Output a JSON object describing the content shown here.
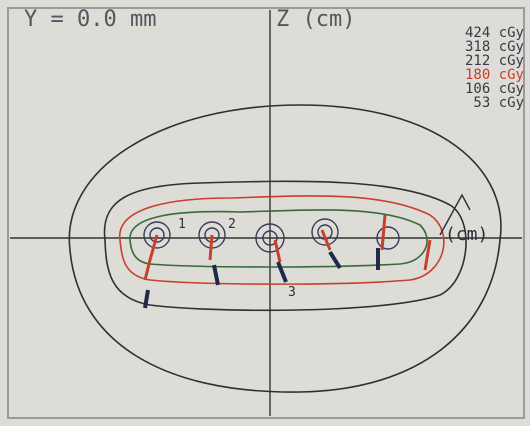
{
  "header": {
    "plane": "Y = 0.0 mm",
    "axis": "Z (cm)"
  },
  "legend": [
    {
      "label": "424 cGy",
      "color": "#3a3a46"
    },
    {
      "label": "318 cGy",
      "color": "#3a3a46"
    },
    {
      "label": "212 cGy",
      "color": "#3a3a46"
    },
    {
      "label": "180 cGy",
      "color": "#c8402c"
    },
    {
      "label": "106 cGy",
      "color": "#3a3a46"
    },
    {
      "label": "53 cGy",
      "color": "#3a3a46"
    }
  ],
  "x_axis_label": "(cm)",
  "seed_labels": [
    "1",
    "2",
    "3"
  ]
}
